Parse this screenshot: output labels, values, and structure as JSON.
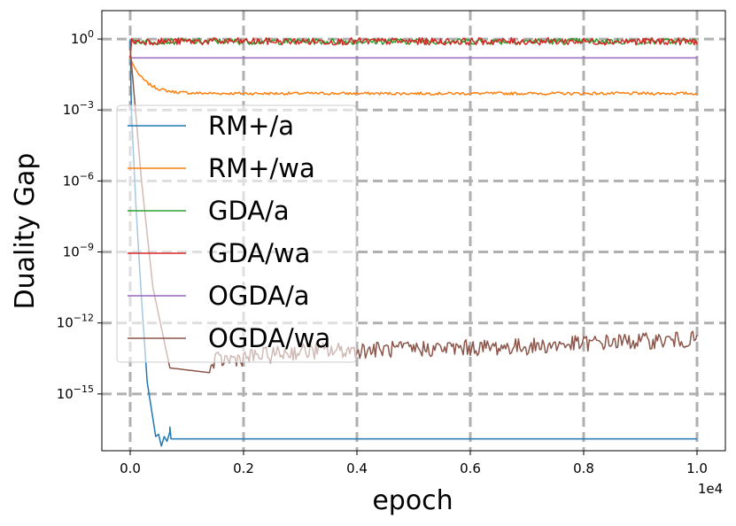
{
  "chart_data": {
    "type": "line",
    "title": "",
    "xlabel": "epoch",
    "ylabel": "Duality Gap",
    "x_offset_label": "1e4",
    "x_scale": 10000,
    "xlim": [
      -0.05,
      1.05
    ],
    "ylim_log10": [
      -17.4,
      1.2
    ],
    "y_scale": "log",
    "grid": true,
    "legend_position": "center-left",
    "x_ticks": [
      {
        "value": 0.0,
        "label": "0.0"
      },
      {
        "value": 0.2,
        "label": "0.2"
      },
      {
        "value": 0.4,
        "label": "0.4"
      },
      {
        "value": 0.6,
        "label": "0.6"
      },
      {
        "value": 0.8,
        "label": "0.8"
      },
      {
        "value": 1.0,
        "label": "1.0"
      }
    ],
    "y_ticks": [
      {
        "exp": 0,
        "base": "10",
        "sup": "0"
      },
      {
        "exp": -3,
        "base": "10",
        "sup": "−3"
      },
      {
        "exp": -6,
        "base": "10",
        "sup": "−6"
      },
      {
        "exp": -9,
        "base": "10",
        "sup": "−9"
      },
      {
        "exp": -12,
        "base": "10",
        "sup": "−12"
      },
      {
        "exp": -15,
        "base": "10",
        "sup": "−15"
      }
    ],
    "series": [
      {
        "name": "RM+/a",
        "color": "#1f77b4",
        "kind": "pts",
        "noise": 0,
        "points": [
          [
            0.0,
            0.0
          ],
          [
            0.002,
            -3.0
          ],
          [
            0.01,
            -7.0
          ],
          [
            0.02,
            -11.0
          ],
          [
            0.03,
            -14.5
          ],
          [
            0.045,
            -16.8
          ],
          [
            0.05,
            -16.7
          ],
          [
            0.055,
            -17.2
          ],
          [
            0.06,
            -16.8
          ],
          [
            0.065,
            -17.0
          ],
          [
            0.07,
            -16.6
          ],
          [
            0.07,
            -16.4
          ],
          [
            0.072,
            -16.9
          ],
          [
            1.0,
            -16.9
          ]
        ]
      },
      {
        "name": "RM+/wa",
        "color": "#ff7f0e",
        "kind": "decay",
        "start_exp": -0.8,
        "end_exp": -2.3,
        "tau": 0.025,
        "noise": 0.06
      },
      {
        "name": "GDA/a",
        "color": "#2ca02c",
        "kind": "flat",
        "level_exp": -0.1,
        "start_exp": -0.8,
        "noise": 0.13
      },
      {
        "name": "GDA/wa",
        "color": "#d62728",
        "kind": "flat",
        "level_exp": -0.1,
        "start_exp": -0.8,
        "noise": 0.15
      },
      {
        "name": "OGDA/a",
        "color": "#9467bd",
        "kind": "pts",
        "noise": 0,
        "points": [
          [
            0.0,
            -0.8
          ],
          [
            1.0,
            -0.8
          ]
        ]
      },
      {
        "name": "OGDA/wa",
        "color": "#8c564b",
        "kind": "pts",
        "noise": 0.35,
        "points": [
          [
            0.0,
            -0.4
          ],
          [
            0.02,
            -6.0
          ],
          [
            0.04,
            -10.5
          ],
          [
            0.07,
            -13.9
          ],
          [
            0.14,
            -14.1
          ],
          [
            0.15,
            -13.6
          ],
          [
            0.3,
            -13.2
          ],
          [
            0.5,
            -13.1
          ],
          [
            0.7,
            -13.0
          ],
          [
            0.85,
            -12.8
          ],
          [
            1.0,
            -12.7
          ]
        ]
      }
    ]
  }
}
